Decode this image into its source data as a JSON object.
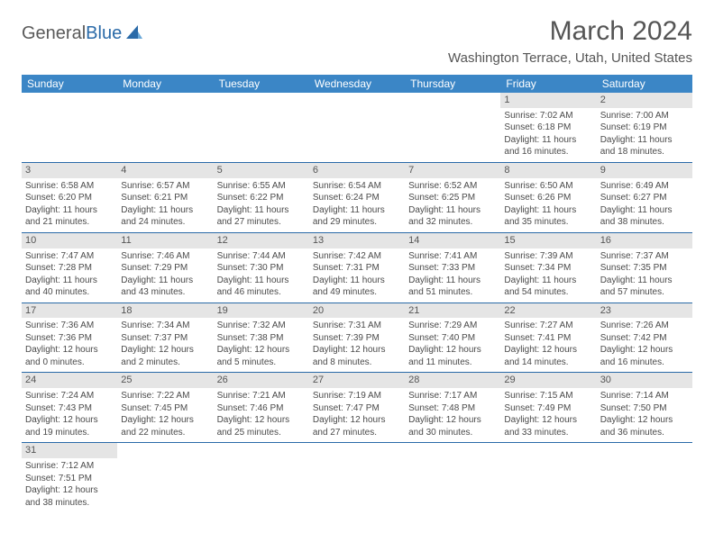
{
  "logo": {
    "general": "General",
    "blue": "Blue"
  },
  "title": "March 2024",
  "location": "Washington Terrace, Utah, United States",
  "colors": {
    "header_bg": "#3b86c6",
    "header_text": "#ffffff",
    "daynum_bg": "#e5e5e5",
    "border": "#2a6aa8",
    "text": "#4a4a4a",
    "logo_blue": "#2a6aa8"
  },
  "fonts": {
    "title_size": 30,
    "location_size": 15,
    "th_size": 12,
    "cell_size": 10
  },
  "day_headers": [
    "Sunday",
    "Monday",
    "Tuesday",
    "Wednesday",
    "Thursday",
    "Friday",
    "Saturday"
  ],
  "weeks": [
    [
      {
        "empty": true
      },
      {
        "empty": true
      },
      {
        "empty": true
      },
      {
        "empty": true
      },
      {
        "empty": true
      },
      {
        "day": "1",
        "sunrise": "Sunrise: 7:02 AM",
        "sunset": "Sunset: 6:18 PM",
        "dl1": "Daylight: 11 hours",
        "dl2": "and 16 minutes."
      },
      {
        "day": "2",
        "sunrise": "Sunrise: 7:00 AM",
        "sunset": "Sunset: 6:19 PM",
        "dl1": "Daylight: 11 hours",
        "dl2": "and 18 minutes."
      }
    ],
    [
      {
        "day": "3",
        "sunrise": "Sunrise: 6:58 AM",
        "sunset": "Sunset: 6:20 PM",
        "dl1": "Daylight: 11 hours",
        "dl2": "and 21 minutes."
      },
      {
        "day": "4",
        "sunrise": "Sunrise: 6:57 AM",
        "sunset": "Sunset: 6:21 PM",
        "dl1": "Daylight: 11 hours",
        "dl2": "and 24 minutes."
      },
      {
        "day": "5",
        "sunrise": "Sunrise: 6:55 AM",
        "sunset": "Sunset: 6:22 PM",
        "dl1": "Daylight: 11 hours",
        "dl2": "and 27 minutes."
      },
      {
        "day": "6",
        "sunrise": "Sunrise: 6:54 AM",
        "sunset": "Sunset: 6:24 PM",
        "dl1": "Daylight: 11 hours",
        "dl2": "and 29 minutes."
      },
      {
        "day": "7",
        "sunrise": "Sunrise: 6:52 AM",
        "sunset": "Sunset: 6:25 PM",
        "dl1": "Daylight: 11 hours",
        "dl2": "and 32 minutes."
      },
      {
        "day": "8",
        "sunrise": "Sunrise: 6:50 AM",
        "sunset": "Sunset: 6:26 PM",
        "dl1": "Daylight: 11 hours",
        "dl2": "and 35 minutes."
      },
      {
        "day": "9",
        "sunrise": "Sunrise: 6:49 AM",
        "sunset": "Sunset: 6:27 PM",
        "dl1": "Daylight: 11 hours",
        "dl2": "and 38 minutes."
      }
    ],
    [
      {
        "day": "10",
        "sunrise": "Sunrise: 7:47 AM",
        "sunset": "Sunset: 7:28 PM",
        "dl1": "Daylight: 11 hours",
        "dl2": "and 40 minutes."
      },
      {
        "day": "11",
        "sunrise": "Sunrise: 7:46 AM",
        "sunset": "Sunset: 7:29 PM",
        "dl1": "Daylight: 11 hours",
        "dl2": "and 43 minutes."
      },
      {
        "day": "12",
        "sunrise": "Sunrise: 7:44 AM",
        "sunset": "Sunset: 7:30 PM",
        "dl1": "Daylight: 11 hours",
        "dl2": "and 46 minutes."
      },
      {
        "day": "13",
        "sunrise": "Sunrise: 7:42 AM",
        "sunset": "Sunset: 7:31 PM",
        "dl1": "Daylight: 11 hours",
        "dl2": "and 49 minutes."
      },
      {
        "day": "14",
        "sunrise": "Sunrise: 7:41 AM",
        "sunset": "Sunset: 7:33 PM",
        "dl1": "Daylight: 11 hours",
        "dl2": "and 51 minutes."
      },
      {
        "day": "15",
        "sunrise": "Sunrise: 7:39 AM",
        "sunset": "Sunset: 7:34 PM",
        "dl1": "Daylight: 11 hours",
        "dl2": "and 54 minutes."
      },
      {
        "day": "16",
        "sunrise": "Sunrise: 7:37 AM",
        "sunset": "Sunset: 7:35 PM",
        "dl1": "Daylight: 11 hours",
        "dl2": "and 57 minutes."
      }
    ],
    [
      {
        "day": "17",
        "sunrise": "Sunrise: 7:36 AM",
        "sunset": "Sunset: 7:36 PM",
        "dl1": "Daylight: 12 hours",
        "dl2": "and 0 minutes."
      },
      {
        "day": "18",
        "sunrise": "Sunrise: 7:34 AM",
        "sunset": "Sunset: 7:37 PM",
        "dl1": "Daylight: 12 hours",
        "dl2": "and 2 minutes."
      },
      {
        "day": "19",
        "sunrise": "Sunrise: 7:32 AM",
        "sunset": "Sunset: 7:38 PM",
        "dl1": "Daylight: 12 hours",
        "dl2": "and 5 minutes."
      },
      {
        "day": "20",
        "sunrise": "Sunrise: 7:31 AM",
        "sunset": "Sunset: 7:39 PM",
        "dl1": "Daylight: 12 hours",
        "dl2": "and 8 minutes."
      },
      {
        "day": "21",
        "sunrise": "Sunrise: 7:29 AM",
        "sunset": "Sunset: 7:40 PM",
        "dl1": "Daylight: 12 hours",
        "dl2": "and 11 minutes."
      },
      {
        "day": "22",
        "sunrise": "Sunrise: 7:27 AM",
        "sunset": "Sunset: 7:41 PM",
        "dl1": "Daylight: 12 hours",
        "dl2": "and 14 minutes."
      },
      {
        "day": "23",
        "sunrise": "Sunrise: 7:26 AM",
        "sunset": "Sunset: 7:42 PM",
        "dl1": "Daylight: 12 hours",
        "dl2": "and 16 minutes."
      }
    ],
    [
      {
        "day": "24",
        "sunrise": "Sunrise: 7:24 AM",
        "sunset": "Sunset: 7:43 PM",
        "dl1": "Daylight: 12 hours",
        "dl2": "and 19 minutes."
      },
      {
        "day": "25",
        "sunrise": "Sunrise: 7:22 AM",
        "sunset": "Sunset: 7:45 PM",
        "dl1": "Daylight: 12 hours",
        "dl2": "and 22 minutes."
      },
      {
        "day": "26",
        "sunrise": "Sunrise: 7:21 AM",
        "sunset": "Sunset: 7:46 PM",
        "dl1": "Daylight: 12 hours",
        "dl2": "and 25 minutes."
      },
      {
        "day": "27",
        "sunrise": "Sunrise: 7:19 AM",
        "sunset": "Sunset: 7:47 PM",
        "dl1": "Daylight: 12 hours",
        "dl2": "and 27 minutes."
      },
      {
        "day": "28",
        "sunrise": "Sunrise: 7:17 AM",
        "sunset": "Sunset: 7:48 PM",
        "dl1": "Daylight: 12 hours",
        "dl2": "and 30 minutes."
      },
      {
        "day": "29",
        "sunrise": "Sunrise: 7:15 AM",
        "sunset": "Sunset: 7:49 PM",
        "dl1": "Daylight: 12 hours",
        "dl2": "and 33 minutes."
      },
      {
        "day": "30",
        "sunrise": "Sunrise: 7:14 AM",
        "sunset": "Sunset: 7:50 PM",
        "dl1": "Daylight: 12 hours",
        "dl2": "and 36 minutes."
      }
    ],
    [
      {
        "day": "31",
        "sunrise": "Sunrise: 7:12 AM",
        "sunset": "Sunset: 7:51 PM",
        "dl1": "Daylight: 12 hours",
        "dl2": "and 38 minutes."
      },
      {
        "empty": true
      },
      {
        "empty": true
      },
      {
        "empty": true
      },
      {
        "empty": true
      },
      {
        "empty": true
      },
      {
        "empty": true
      }
    ]
  ]
}
